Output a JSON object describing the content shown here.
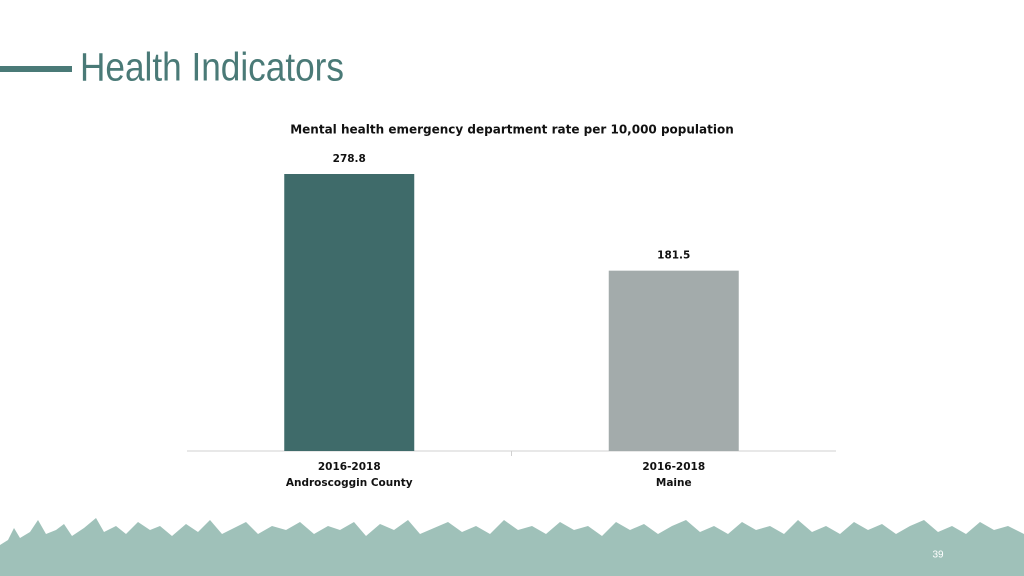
{
  "header": {
    "title": "Health Indicators"
  },
  "page_number": "39",
  "chart_data": {
    "type": "bar",
    "title": "Mental health emergency department rate per 10,000 population",
    "categories": [
      [
        "2016-2018",
        "Androscoggin County"
      ],
      [
        "2016-2018",
        "Maine"
      ]
    ],
    "values": [
      278.8,
      181.5
    ],
    "colors": [
      "#3f6b6a",
      "#a3abab"
    ]
  }
}
